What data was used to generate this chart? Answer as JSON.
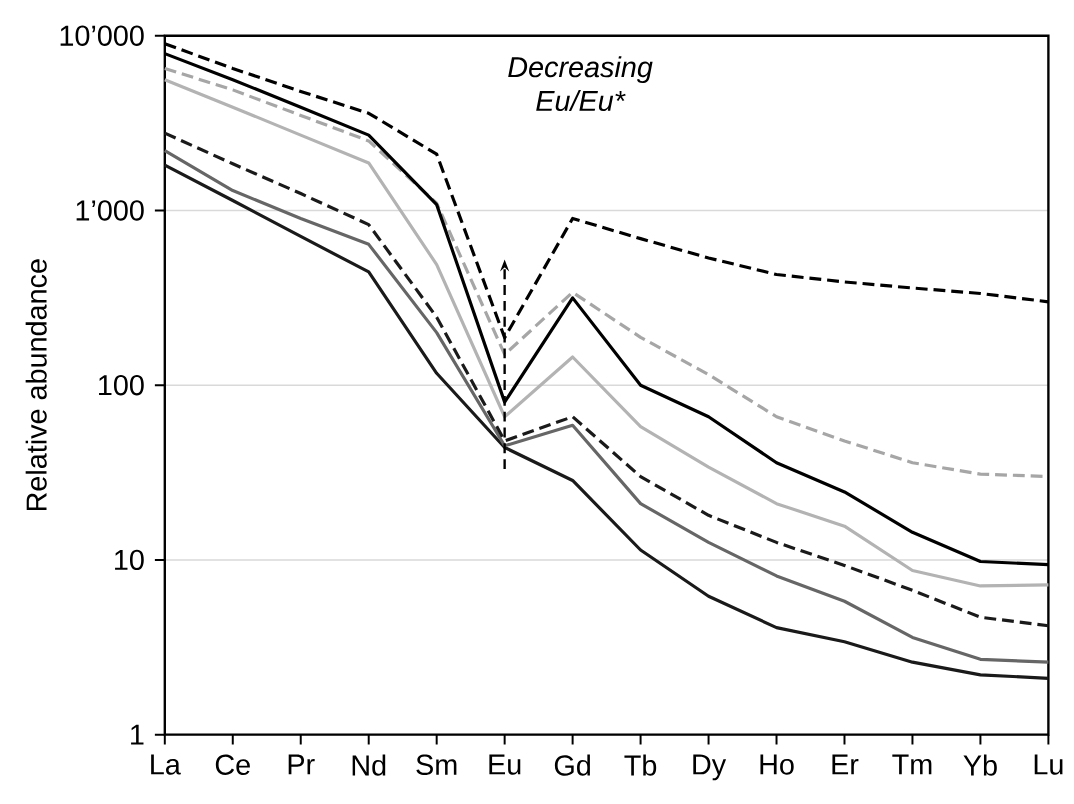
{
  "chart_data": {
    "type": "line",
    "ylabel": "Relative abundance",
    "annotations": [
      "Decreasing Eu/Eu*"
    ],
    "categories": [
      "La",
      "Ce",
      "Pr",
      "Nd",
      "Sm",
      "Eu",
      "Gd",
      "Tb",
      "Dy",
      "Ho",
      "Er",
      "Tm",
      "Yb",
      "Lu"
    ],
    "log": true,
    "grid": "y",
    "ylim": [
      1,
      10000
    ],
    "yticks": [
      {
        "value": 1,
        "label": "1"
      },
      {
        "value": 10,
        "label": "10"
      },
      {
        "value": 100,
        "label": "100"
      },
      {
        "value": 1000,
        "label": "1’000"
      },
      {
        "value": 10000,
        "label": "10’000"
      }
    ],
    "series": [
      {
        "color": "#1a1a1a",
        "line_style": "solid",
        "values": [
          1820,
          1140,
          710,
          445,
          117,
          44,
          28.5,
          11.4,
          6.2,
          4.1,
          3.4,
          2.6,
          2.2,
          2.1
        ]
      },
      {
        "color": "#666666",
        "line_style": "solid",
        "values": [
          2200,
          1300,
          900,
          640,
          200,
          45,
          59,
          21,
          12.6,
          8.1,
          5.8,
          3.6,
          2.7,
          2.6
        ]
      },
      {
        "color": "#1a1a1a",
        "line_style": "dashed",
        "values": [
          2770,
          1850,
          1250,
          830,
          245,
          48,
          66,
          30,
          18,
          12.6,
          9.3,
          6.7,
          4.7,
          4.2
        ]
      },
      {
        "color": "#b3b3b3",
        "line_style": "solid",
        "values": [
          5600,
          3900,
          2700,
          1870,
          490,
          66,
          145,
          58,
          34,
          21,
          15.6,
          8.7,
          7.1,
          7.2
        ]
      },
      {
        "color": "#a6a6a6",
        "line_style": "dashed",
        "values": [
          6500,
          4900,
          3500,
          2500,
          1100,
          150,
          340,
          188,
          115,
          66,
          48,
          36,
          31,
          30
        ]
      },
      {
        "color": "#000000",
        "line_style": "solid",
        "values": [
          7900,
          5600,
          3900,
          2700,
          1080,
          80,
          316,
          100,
          66,
          36,
          24.5,
          14.4,
          9.8,
          9.4
        ]
      },
      {
        "color": "#000000",
        "line_style": "dashed",
        "values": [
          9000,
          6500,
          4800,
          3600,
          2100,
          187,
          900,
          690,
          535,
          430,
          390,
          360,
          335,
          300
        ]
      }
    ]
  }
}
